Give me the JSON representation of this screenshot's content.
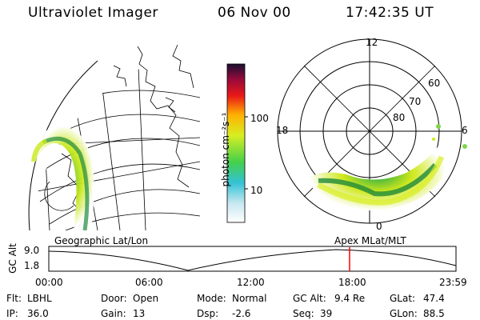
{
  "header": {
    "instrument": "Ultraviolet Imager",
    "date": "06 Nov 00",
    "time": "17:42:35 UT"
  },
  "colorbar": {
    "unit_label": "photon cm⁻²s⁻¹",
    "ticks": [
      "100",
      "10"
    ]
  },
  "polar_plot": {
    "mlt_labels": [
      "12",
      "18",
      "6",
      "0"
    ],
    "lat_labels": [
      "60",
      "70",
      "80"
    ]
  },
  "timeline": {
    "left_title": "Geographic Lat/Lon",
    "right_title": "Apex MLat/MLT",
    "axis_label": "GC Alt",
    "y_ticks": [
      "9.0",
      "1.8"
    ],
    "x_ticks": [
      "00:00",
      "06:00",
      "12:00",
      "18:00",
      "23:59"
    ],
    "cursor_color": "#ff0000"
  },
  "info": {
    "flt_label": "Flt:",
    "flt_value": "LBHL",
    "ip_label": "IP:",
    "ip_value": "36.0",
    "door_label": "Door:",
    "door_value": "Open",
    "gain_label": "Gain:",
    "gain_value": "13",
    "mode_label": "Mode:",
    "mode_value": "Normal",
    "dsp_label": "Dsp:",
    "dsp_value": "-2.6",
    "gcalt_label": "GC Alt:",
    "gcalt_value": "9.4 Re",
    "seq_label": "Seq:",
    "seq_value": "39",
    "glat_label": "GLat:",
    "glat_value": "47.4",
    "glon_label": "GLon:",
    "glon_value": "88.5"
  }
}
